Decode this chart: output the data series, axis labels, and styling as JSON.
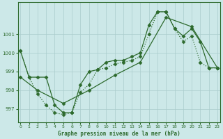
{
  "line1": {
    "x": [
      0,
      1,
      2,
      3,
      4,
      5,
      6,
      7,
      8,
      9,
      10,
      11,
      12,
      13,
      14,
      15,
      16,
      17,
      18,
      19,
      20,
      21,
      22,
      23
    ],
    "y": [
      1000.1,
      998.7,
      998.7,
      998.7,
      997.2,
      996.8,
      996.8,
      998.3,
      999.0,
      999.1,
      999.5,
      999.6,
      999.6,
      999.8,
      1000.0,
      1001.5,
      1002.2,
      1002.2,
      1001.3,
      1000.9,
      1001.3,
      1000.6,
      999.2,
      999.2
    ]
  },
  "line2": {
    "x": [
      0,
      1,
      2,
      3,
      4,
      5,
      6,
      7,
      8,
      9,
      10,
      11,
      12,
      13,
      14,
      15,
      16,
      17,
      18,
      19,
      20,
      21,
      22,
      23
    ],
    "y": [
      1000.1,
      998.7,
      997.8,
      997.2,
      996.8,
      996.7,
      996.8,
      997.9,
      998.3,
      999.1,
      999.2,
      999.4,
      999.5,
      999.6,
      999.8,
      1001.0,
      1002.2,
      1002.2,
      1001.3,
      1000.6,
      1000.9,
      999.5,
      999.2,
      999.2
    ]
  },
  "line3": {
    "x": [
      0,
      2,
      5,
      8,
      11,
      14,
      17,
      20,
      23
    ],
    "y": [
      998.7,
      998.0,
      997.3,
      998.0,
      998.8,
      999.5,
      1001.9,
      1001.4,
      999.2
    ]
  },
  "color": "#2d6a2d",
  "bg_color": "#cce8e8",
  "grid_color": "#aacccc",
  "xlabel": "Graphe pression niveau de la mer (hPa)",
  "ylim": [
    996.3,
    1002.7
  ],
  "xlim": [
    -0.3,
    23.3
  ],
  "yticks": [
    997,
    998,
    999,
    1000,
    1001
  ],
  "xticks": [
    0,
    1,
    2,
    3,
    4,
    5,
    6,
    7,
    8,
    9,
    10,
    11,
    12,
    13,
    14,
    15,
    16,
    17,
    18,
    19,
    20,
    21,
    22,
    23
  ]
}
